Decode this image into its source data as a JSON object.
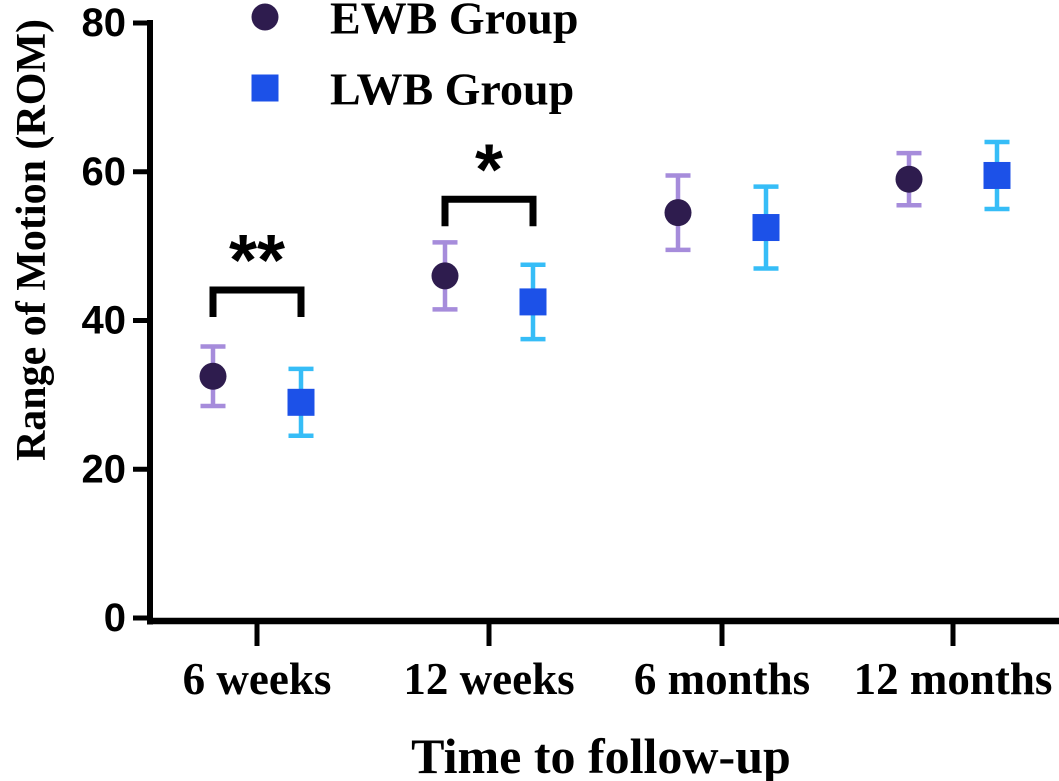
{
  "chart_data": {
    "type": "scatter",
    "title": "",
    "xlabel": "Time to follow-up",
    "ylabel": "Range of Motion (ROM)",
    "categories": [
      "6 weeks",
      "12 weeks",
      "6 months",
      "12 months"
    ],
    "ylim": [
      0,
      80
    ],
    "yticks": [
      0,
      20,
      40,
      60,
      80
    ],
    "grid": false,
    "legend_position": "top-left",
    "series": [
      {
        "name": "EWB Group",
        "marker": "circle",
        "color": "#2e1c4e",
        "error_color": "#a68cdb",
        "values": [
          32.5,
          46,
          54.5,
          59
        ],
        "errors": [
          4,
          4.5,
          5,
          3.5
        ]
      },
      {
        "name": "LWB Group",
        "marker": "square",
        "color": "#1c51e8",
        "error_color": "#36bdf7",
        "values": [
          29,
          42.5,
          52.5,
          59.5
        ],
        "errors": [
          4.5,
          5,
          5.5,
          4.5
        ]
      }
    ],
    "annotations": [
      {
        "category_index": 0,
        "label": "**",
        "bracket_top_value": 44.1
      },
      {
        "category_index": 1,
        "label": "*",
        "bracket_top_value": 56.3
      }
    ],
    "colors": {
      "axis": "#000000",
      "background": "#ffffff",
      "text": "#000000"
    }
  }
}
